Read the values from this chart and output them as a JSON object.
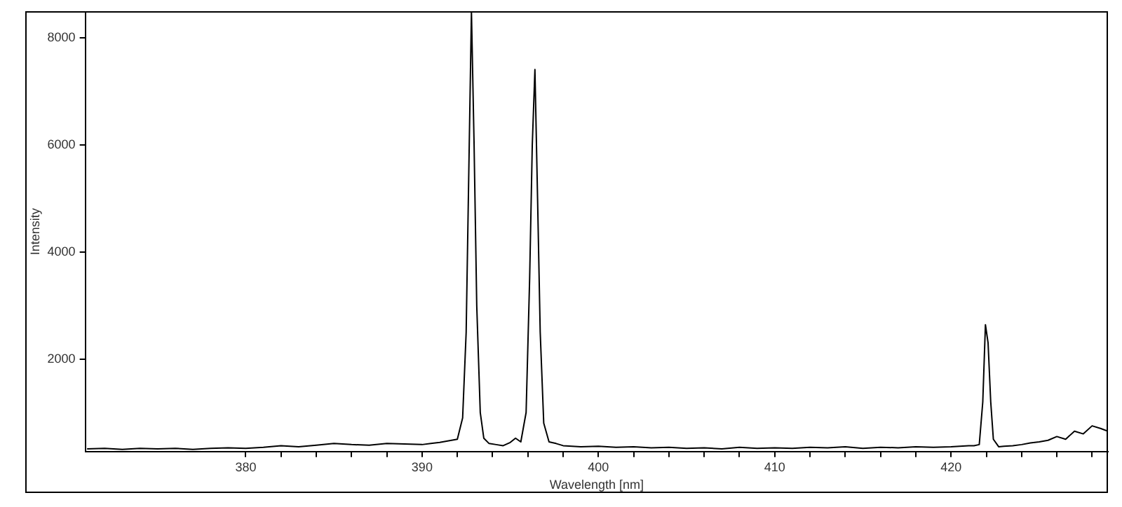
{
  "chart_data": {
    "type": "line",
    "xlabel": "Wavelength [nm]",
    "ylabel": "Intensity",
    "xlim": [
      370.9,
      428.9
    ],
    "ylim": [
      270,
      8490
    ],
    "xticks": [
      380,
      {
        "value": 382,
        "label": null
      },
      {
        "value": 384,
        "label": null
      },
      {
        "value": 386,
        "label": null
      },
      {
        "value": 388,
        "label": null
      },
      390,
      {
        "value": 392,
        "label": null
      },
      {
        "value": 394,
        "label": null
      },
      {
        "value": 396,
        "label": null
      },
      {
        "value": 398,
        "label": null
      },
      400,
      {
        "value": 402,
        "label": null
      },
      {
        "value": 404,
        "label": null
      },
      {
        "value": 406,
        "label": null
      },
      {
        "value": 408,
        "label": null
      },
      410,
      {
        "value": 412,
        "label": null
      },
      {
        "value": 414,
        "label": null
      },
      {
        "value": 416,
        "label": null
      },
      {
        "value": 418,
        "label": null
      },
      420,
      {
        "value": 422,
        "label": null
      },
      {
        "value": 424,
        "label": null
      },
      {
        "value": 426,
        "label": null
      },
      {
        "value": 428,
        "label": null
      }
    ],
    "yticks": [
      2000,
      4000,
      6000,
      8000
    ],
    "grid": false,
    "legend": false,
    "marker": "none",
    "line_style": "solid",
    "series": [
      {
        "color": "#000000",
        "x": [
          371,
          372,
          373,
          374,
          375,
          376,
          377,
          378,
          379,
          380,
          381,
          382,
          383,
          384,
          385,
          386,
          387,
          388,
          389,
          390,
          390.5,
          391,
          391.5,
          392,
          392.3,
          392.5,
          392.65,
          392.8,
          392.95,
          393.1,
          393.3,
          393.5,
          393.8,
          394.2,
          394.6,
          395,
          395.3,
          395.6,
          395.9,
          396.1,
          396.25,
          396.4,
          396.55,
          396.7,
          396.9,
          397.2,
          397.6,
          398,
          399,
          400,
          401,
          402,
          403,
          404,
          405,
          406,
          407,
          408,
          409,
          410,
          411,
          412,
          413,
          414,
          415,
          416,
          417,
          418,
          419,
          420,
          420.5,
          421,
          421.3,
          421.6,
          421.8,
          421.95,
          422.1,
          422.25,
          422.4,
          422.7,
          423,
          423.5,
          424,
          424.5,
          425,
          425.5,
          426,
          426.5,
          427,
          427.5,
          428,
          428.5,
          428.9
        ],
        "values": [
          320,
          330,
          310,
          330,
          320,
          330,
          310,
          330,
          340,
          330,
          350,
          380,
          360,
          390,
          420,
          400,
          390,
          420,
          410,
          400,
          420,
          440,
          470,
          500,
          900,
          2500,
          5500,
          8490,
          6000,
          3000,
          1000,
          520,
          420,
          400,
          380,
          440,
          520,
          450,
          1000,
          3500,
          6000,
          7410,
          5000,
          2500,
          800,
          450,
          420,
          380,
          360,
          370,
          350,
          360,
          340,
          350,
          330,
          340,
          320,
          350,
          330,
          340,
          330,
          350,
          340,
          360,
          330,
          350,
          340,
          360,
          350,
          360,
          370,
          380,
          380,
          400,
          1200,
          2640,
          2300,
          1200,
          500,
          360,
          370,
          380,
          400,
          430,
          450,
          480,
          550,
          500,
          650,
          600,
          750,
          700,
          650
        ]
      }
    ]
  }
}
